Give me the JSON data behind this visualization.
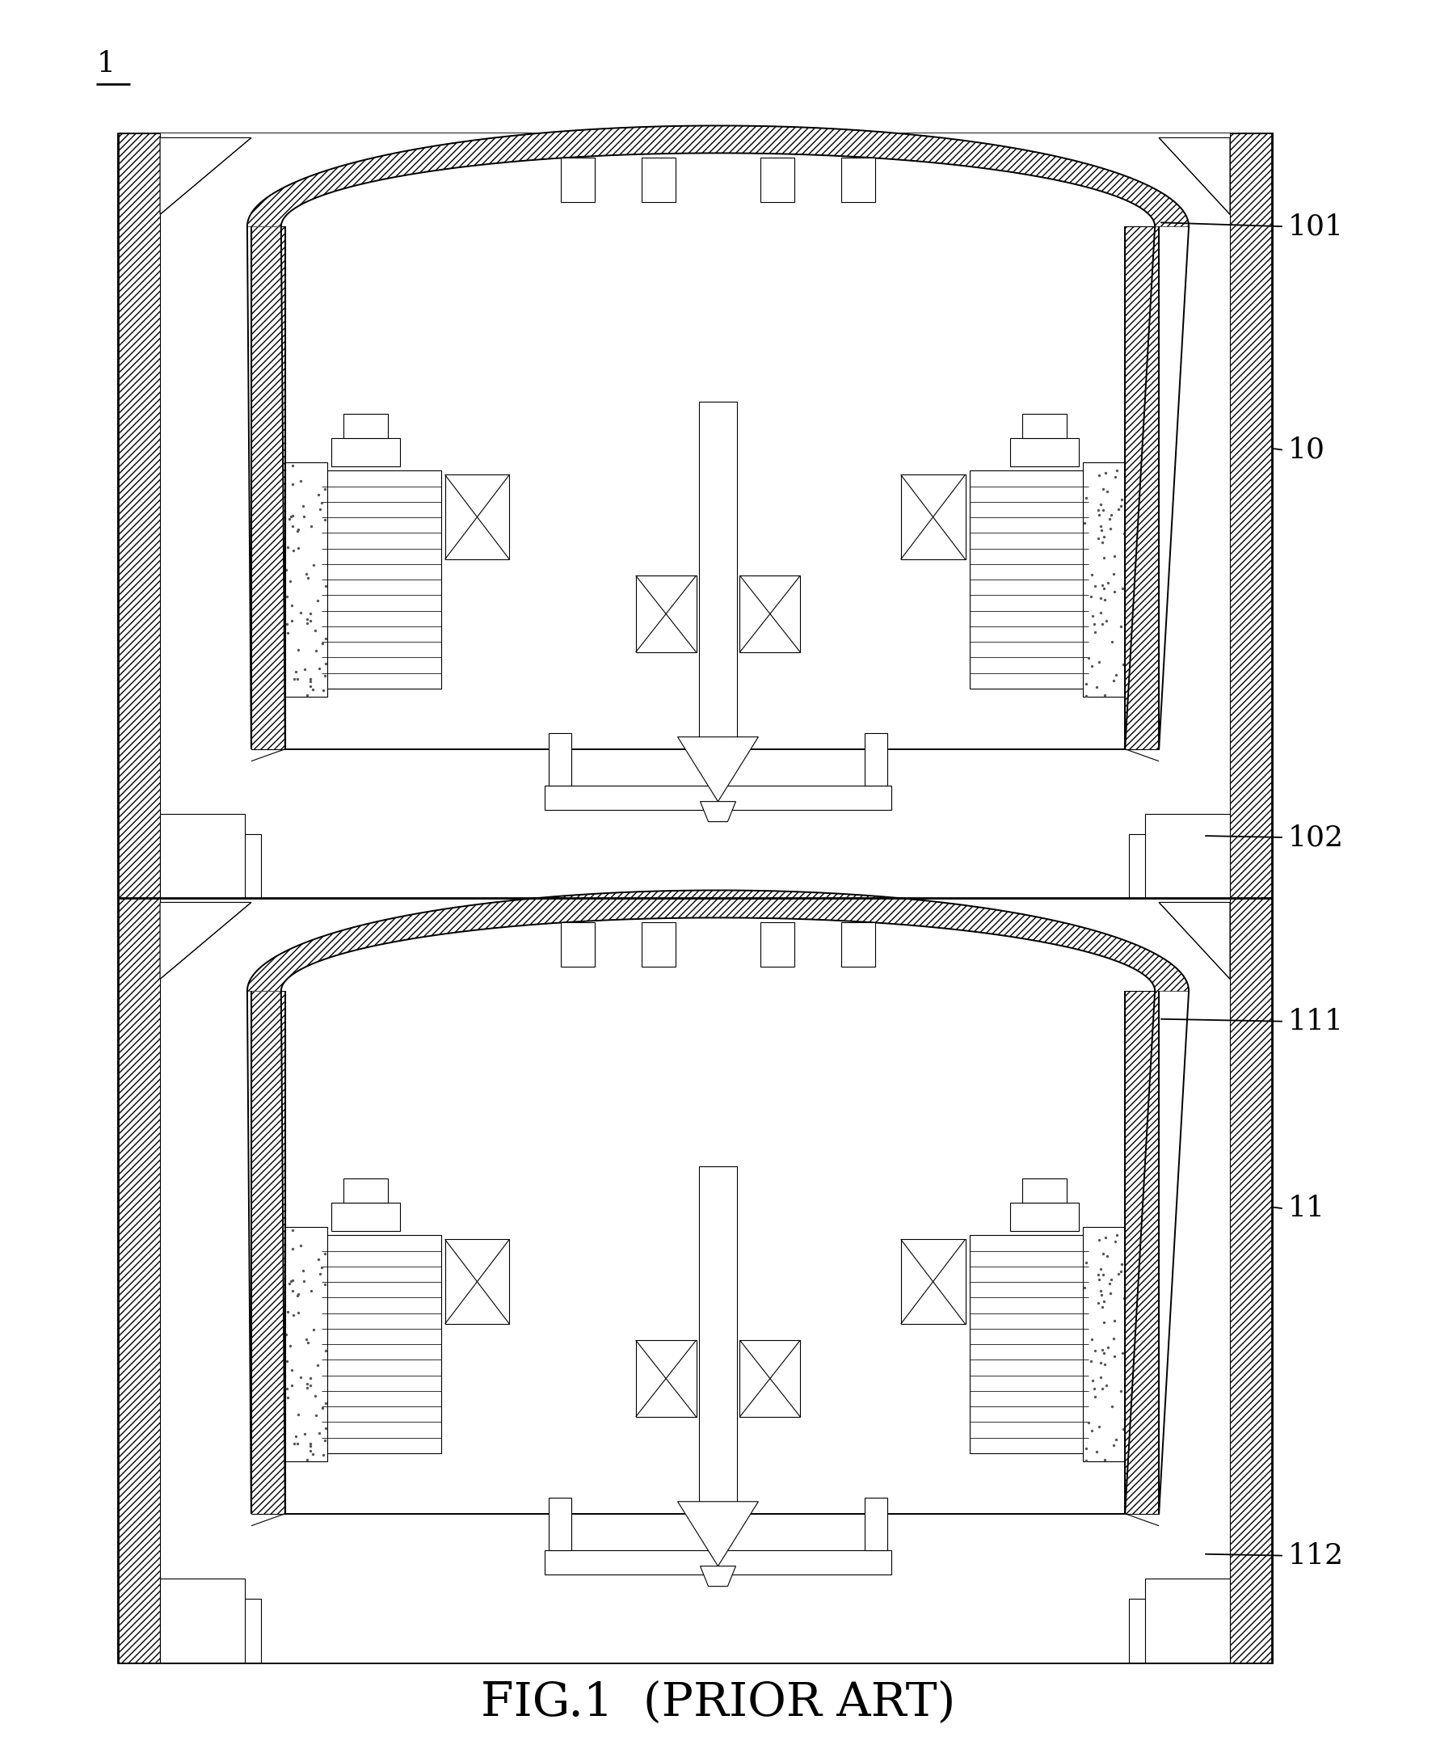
{
  "title": "FIG.1  (PRIOR ART)",
  "label_1": "1",
  "label_10": "10",
  "label_101": "101",
  "label_102": "102",
  "label_11": "11",
  "label_111": "111",
  "label_112": "112",
  "bg_color": "#ffffff",
  "line_color": "#000000",
  "fig_width": 17.77,
  "fig_height": 21.54,
  "lw_thin": 0.8,
  "lw_med": 1.4,
  "lw_thick": 2.0
}
